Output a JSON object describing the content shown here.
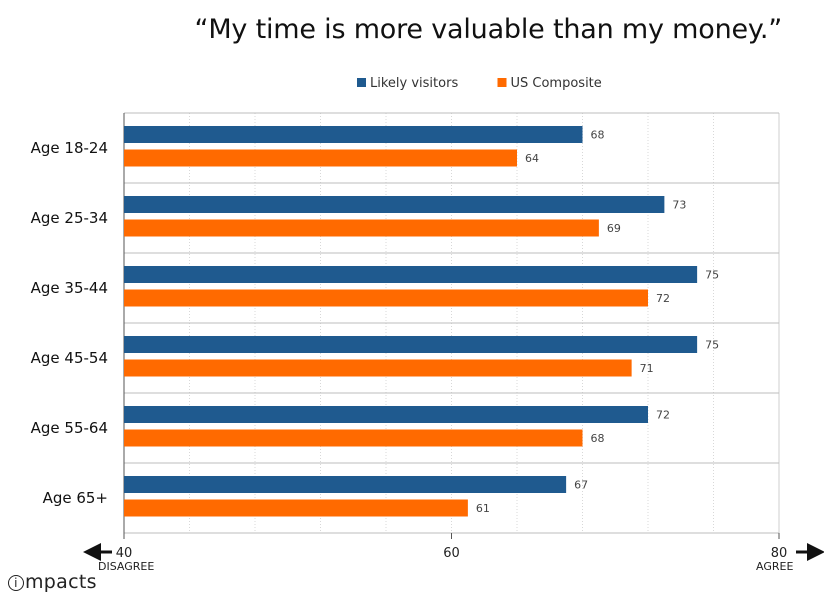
{
  "chart_data": {
    "type": "bar",
    "orientation": "horizontal",
    "title": "“My time is more valuable than my money.”",
    "categories": [
      "Age 18-24",
      "Age 25-34",
      "Age 35-44",
      "Age 45-54",
      "Age 55-64",
      "Age 65+"
    ],
    "series": [
      {
        "name": "Likely visitors",
        "color": "#1f5a8f",
        "values": [
          68,
          73,
          75,
          75,
          72,
          67
        ]
      },
      {
        "name": "US Composite",
        "color": "#ff6a00",
        "values": [
          64,
          69,
          72,
          71,
          68,
          61
        ]
      }
    ],
    "xlim": [
      40,
      80
    ],
    "xticks": [
      "40",
      "60",
      "80"
    ],
    "x_left_label": "DISAGREE",
    "x_right_label": "AGREE",
    "legend_position": "top-center",
    "grid": true
  },
  "logo": {
    "text": "impacts"
  }
}
